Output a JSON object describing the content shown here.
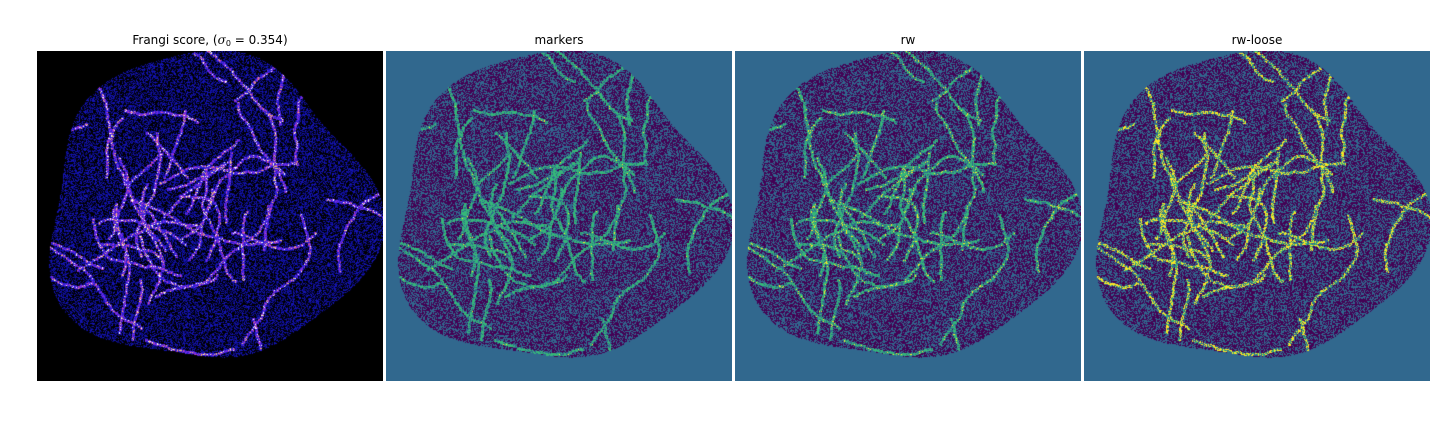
{
  "panels": [
    {
      "id": "frangi",
      "title_prefix": "Frangi score, (",
      "sigma_symbol": "σ",
      "sigma_subscript": "0",
      "title_suffix": " = 0.354)",
      "colormap": "gnuplot2",
      "background_color": "#000000",
      "palette": [
        "#000000",
        "#0a0a6e",
        "#1414b4",
        "#2a1fd6",
        "#7a2be0",
        "#d24aa0",
        "#f0c070",
        "#ffffff"
      ]
    },
    {
      "id": "markers",
      "title": "markers",
      "colormap": "viridis",
      "background_color": "#31688e",
      "palette": [
        "#440154",
        "#31688e",
        "#35b779",
        "#fde725"
      ]
    },
    {
      "id": "rw",
      "title": "rw",
      "colormap": "viridis",
      "background_color": "#31688e",
      "palette": [
        "#440154",
        "#31688e",
        "#35b779",
        "#fde725"
      ]
    },
    {
      "id": "rw-loose",
      "title": "rw-loose",
      "colormap": "viridis",
      "background_color": "#31688e",
      "palette": [
        "#440154",
        "#31688e",
        "#35b779",
        "#fde725"
      ]
    }
  ]
}
